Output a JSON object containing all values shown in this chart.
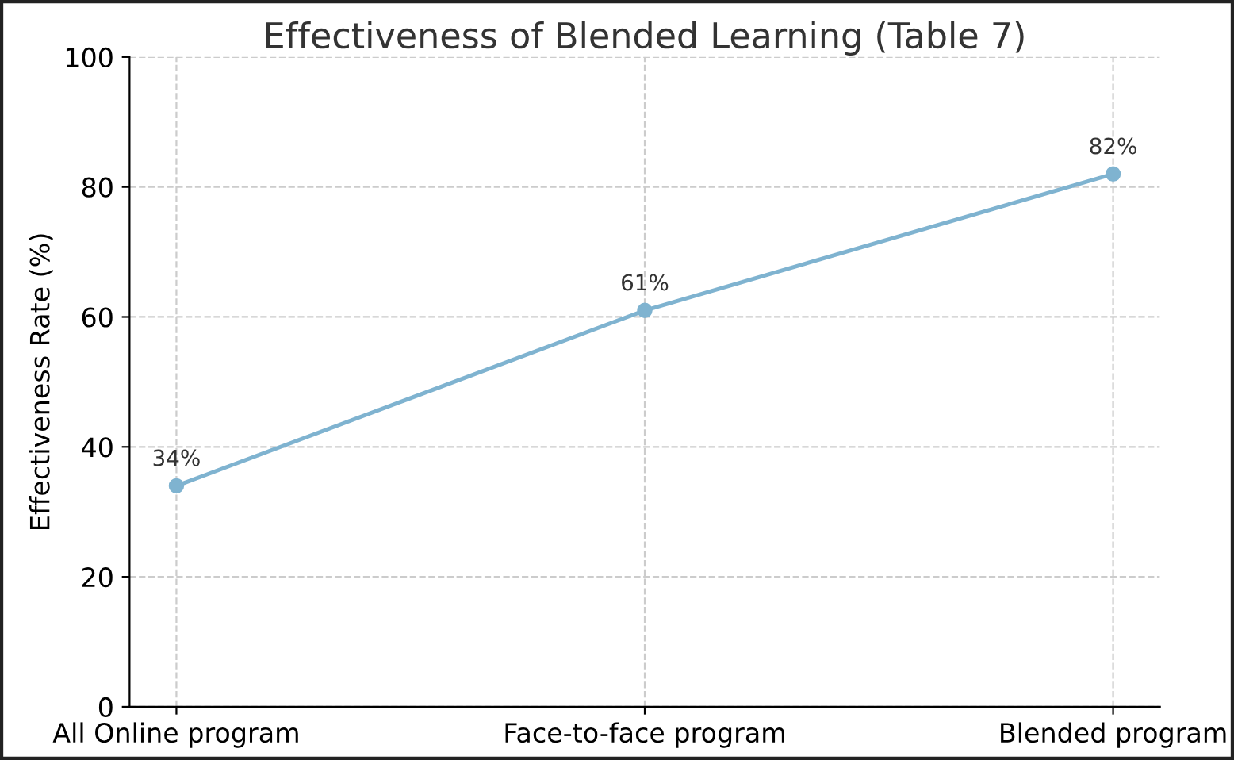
{
  "chart_data": {
    "type": "line",
    "title": "Effectiveness of Blended Learning (Table 7)",
    "ylabel": "Effectiveness Rate (%)",
    "categories": [
      "All Online program",
      "Face-to-face program",
      "Blended program"
    ],
    "series": [
      {
        "color": "#7fb3d0",
        "values": [
          34,
          61,
          82
        ],
        "value_labels": [
          "34%",
          "61%",
          "82%"
        ]
      }
    ],
    "ylim": [
      0,
      100
    ],
    "yticks": [
      0,
      20,
      40,
      60,
      80,
      100
    ],
    "grid": true,
    "marker": "circle",
    "line_style": "solid"
  }
}
